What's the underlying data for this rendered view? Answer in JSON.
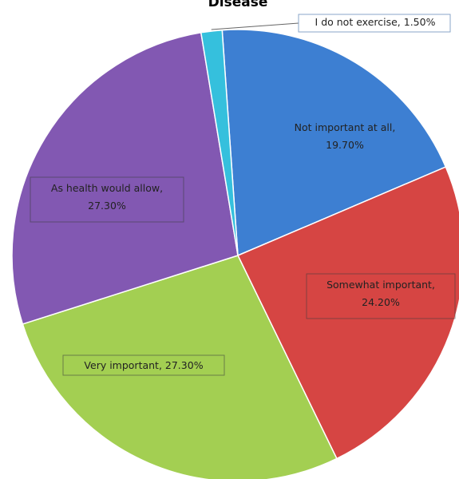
{
  "chart_data": {
    "type": "pie",
    "title": "Disease",
    "start_angle_deg": -4,
    "direction": "clockwise",
    "slices": [
      {
        "label": "Not important at all",
        "value": 19.7,
        "display": "19.70%",
        "color": "#3d7fd2",
        "label_box": false
      },
      {
        "label": "Somewhat important",
        "value": 24.2,
        "display": "24.20%",
        "color": "#d64543",
        "label_box": true
      },
      {
        "label": "Very important",
        "value": 27.3,
        "display": "27.30%",
        "color": "#a3cf52",
        "label_box": true
      },
      {
        "label": "As health would allow",
        "value": 27.3,
        "display": "27.30%",
        "color": "#8258b2",
        "label_box": true
      },
      {
        "label": "I do not exercise",
        "value": 1.5,
        "display": "1.50%",
        "color": "#35c0dd",
        "label_box": true
      }
    ]
  }
}
